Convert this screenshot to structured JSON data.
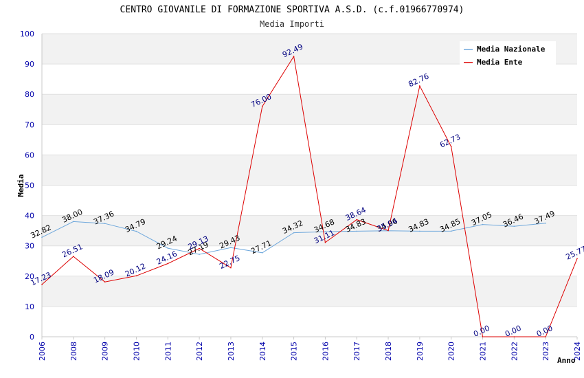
{
  "chart_data": {
    "type": "line",
    "title": "CENTRO GIOVANILE DI FORMAZIONE SPORTIVA A.S.D. (c.f.01966770974)",
    "subtitle": "Media Importi",
    "xlabel": "Anno",
    "ylabel": "Media",
    "ylim": [
      0,
      100
    ],
    "yticks": [
      "0",
      "10",
      "20",
      "30",
      "40",
      "50",
      "60",
      "70",
      "80",
      "90",
      "100"
    ],
    "categories": [
      "2006",
      "2008",
      "2009",
      "2010",
      "2011",
      "2012",
      "2013",
      "2014",
      "2015",
      "2016",
      "2017",
      "2018",
      "2019",
      "2020",
      "2021",
      "2022",
      "2023",
      "2024"
    ],
    "grid": true,
    "legend_position": "top-right",
    "series": [
      {
        "name": "Media Nazionale",
        "color": "#6fa8dc",
        "values": [
          32.82,
          38.0,
          37.36,
          34.79,
          29.24,
          27.19,
          29.43,
          27.71,
          34.32,
          34.68,
          34.83,
          34.96,
          34.83,
          34.85,
          37.05,
          36.46,
          37.49,
          null
        ],
        "labels": [
          "32.82",
          "38.00",
          "37.36",
          "34.79",
          "29.24",
          "27.19",
          "29.43",
          "27.71",
          "34.32",
          "34.68",
          "34.83",
          "34.96",
          "34.83",
          "34.85",
          "37.05",
          "36.46",
          "37.49",
          ""
        ]
      },
      {
        "name": "Media Ente",
        "color": "#dd0000",
        "values": [
          17.23,
          26.51,
          18.09,
          20.12,
          24.16,
          29.13,
          22.75,
          76.0,
          92.49,
          31.11,
          38.64,
          35.04,
          82.76,
          62.73,
          0.0,
          0.0,
          0.0,
          25.77
        ],
        "labels": [
          "17.23",
          "26.51",
          "18.09",
          "20.12",
          "24.16",
          "29.13",
          "22.75",
          "76.00",
          "92.49",
          "31.11",
          "38.64",
          "35.04",
          "82.76",
          "62.73",
          "0.00",
          "0.00",
          "0.00",
          "25.77"
        ]
      }
    ]
  }
}
